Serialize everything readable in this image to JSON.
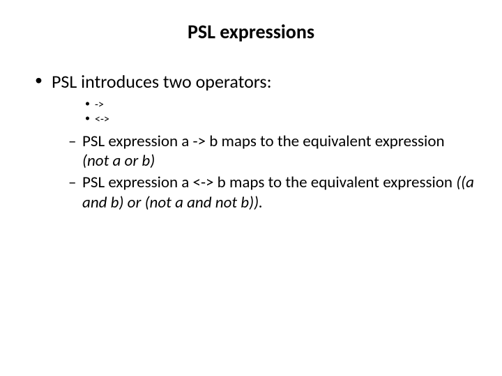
{
  "slide": {
    "title": "PSL expressions",
    "main": {
      "intro": "PSL introduces two operators:",
      "op1": "->",
      "op2": "<->",
      "map1_a": "PSL expression a -> b maps to the equivalent expression ",
      "map1_b": "(not a or b)",
      "map2_a": "PSL expression a <-> b maps to the equivalent expression ",
      "map2_b": "((a and b) or (not a and not b)).",
      "typography": {
        "title_fontsize_pt": 21,
        "body_fontsize_pt": 20,
        "sub_bullet_fontsize_pt": 12,
        "dash_fontsize_pt": 17,
        "font_family": "Calibri",
        "title_weight": "bold"
      },
      "colors": {
        "text": "#000000",
        "background": "#ffffff"
      }
    }
  }
}
